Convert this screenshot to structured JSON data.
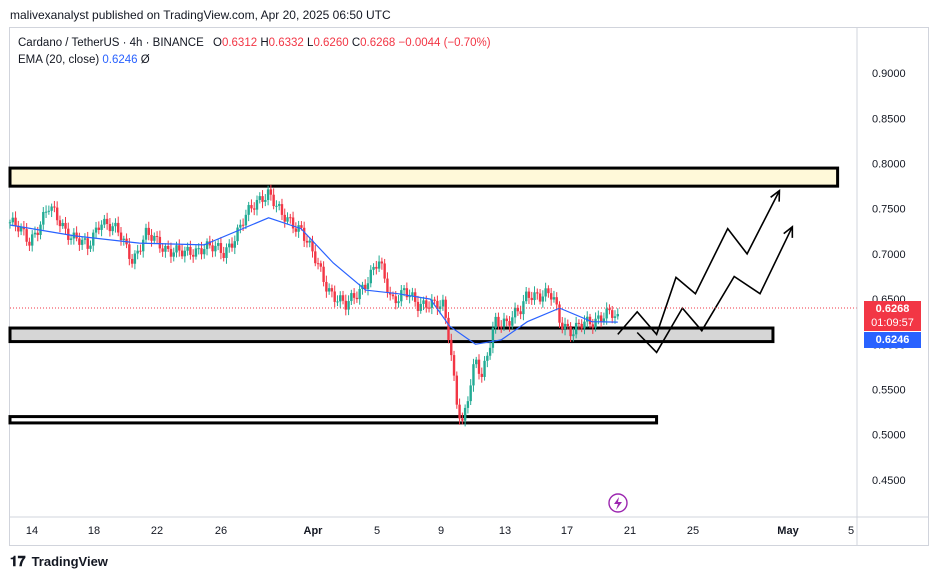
{
  "publisher_line": "malivexanalyst published on TradingView.com, Apr 20, 2025 06:50 UTC",
  "legend": {
    "symbol": "Cardano / TetherUS · 4h · BINANCE",
    "o_label": "O",
    "o_value": "0.6312",
    "h_label": "H",
    "h_value": "0.6332",
    "l_label": "L",
    "l_value": "0.6260",
    "c_label": "C",
    "c_value": "0.6268",
    "change": "−0.0044 (−0.70%)",
    "ema_label": "EMA (20, close)",
    "ema_value": "0.6246",
    "ema_suffix": "Ø"
  },
  "price_tags": {
    "last_price": "0.6268",
    "countdown": "01:09:57",
    "ema_price": "0.6246"
  },
  "footer_logo": "TradingView",
  "colors": {
    "up": "#22ab94",
    "down": "#f23645",
    "ema": "#2962ff",
    "resistance_zone": "#fff9d9",
    "support_zone": "#d6d6d6"
  },
  "chart_data": {
    "type": "candlestick",
    "symbol": "ADA/USDT",
    "interval": "4h",
    "ylim": [
      0.41,
      0.95
    ],
    "y_ticks": [
      "0.4500",
      "0.5000",
      "0.5500",
      "0.6000",
      "0.6500",
      "0.7000",
      "0.7500",
      "0.8000",
      "0.8500",
      "0.9000"
    ],
    "x_ticks": [
      "14",
      "18",
      "22",
      "26",
      "Apr",
      "5",
      "9",
      "13",
      "17",
      "21",
      "25",
      "May",
      "5"
    ],
    "price_path": [
      [
        0,
        0.735
      ],
      [
        3,
        0.715
      ],
      [
        6,
        0.75
      ],
      [
        9,
        0.725
      ],
      [
        12,
        0.705
      ],
      [
        14,
        0.74
      ],
      [
        17,
        0.72
      ],
      [
        19,
        0.695
      ],
      [
        21,
        0.72
      ],
      [
        24,
        0.708
      ],
      [
        27,
        0.698
      ],
      [
        30,
        0.71
      ],
      [
        33,
        0.7
      ],
      [
        36,
        0.735
      ],
      [
        39,
        0.765
      ],
      [
        40,
        0.77
      ],
      [
        42,
        0.74
      ],
      [
        45,
        0.73
      ],
      [
        47,
        0.695
      ],
      [
        49,
        0.665
      ],
      [
        52,
        0.64
      ],
      [
        55,
        0.67
      ],
      [
        57,
        0.69
      ],
      [
        59,
        0.65
      ],
      [
        61,
        0.66
      ],
      [
        63,
        0.64
      ],
      [
        65,
        0.65
      ],
      [
        67,
        0.64
      ],
      [
        68,
        0.6
      ],
      [
        69,
        0.54
      ],
      [
        70,
        0.515
      ],
      [
        71,
        0.55
      ],
      [
        72,
        0.58
      ],
      [
        73,
        0.56
      ],
      [
        75,
        0.63
      ],
      [
        77,
        0.62
      ],
      [
        79,
        0.64
      ],
      [
        80,
        0.66
      ],
      [
        82,
        0.65
      ],
      [
        84,
        0.655
      ],
      [
        85,
        0.63
      ],
      [
        87,
        0.61
      ],
      [
        89,
        0.625
      ],
      [
        91,
        0.63
      ],
      [
        93,
        0.632
      ],
      [
        94,
        0.6268
      ]
    ],
    "ema_20": [
      [
        0,
        0.732
      ],
      [
        10,
        0.72
      ],
      [
        20,
        0.712
      ],
      [
        30,
        0.71
      ],
      [
        40,
        0.74
      ],
      [
        45,
        0.728
      ],
      [
        50,
        0.69
      ],
      [
        55,
        0.66
      ],
      [
        60,
        0.656
      ],
      [
        65,
        0.65
      ],
      [
        68,
        0.62
      ],
      [
        72,
        0.6
      ],
      [
        76,
        0.605
      ],
      [
        80,
        0.625
      ],
      [
        85,
        0.64
      ],
      [
        90,
        0.625
      ],
      [
        94,
        0.6246
      ]
    ],
    "zones": [
      {
        "low": 0.775,
        "high": 0.795,
        "to_x": 128
      },
      {
        "low": 0.603,
        "high": 0.618,
        "to_x": 118
      },
      {
        "low": 0.513,
        "high": 0.52,
        "to_x": 100
      }
    ],
    "projection_paths": [
      [
        [
          94,
          0.611
        ],
        [
          97,
          0.636
        ],
        [
          100,
          0.611
        ],
        [
          103,
          0.674
        ],
        [
          106,
          0.656
        ],
        [
          111,
          0.728
        ],
        [
          114,
          0.7
        ],
        [
          119,
          0.77
        ]
      ],
      [
        [
          97,
          0.613
        ],
        [
          100,
          0.591
        ],
        [
          104,
          0.64
        ],
        [
          107,
          0.615
        ],
        [
          112,
          0.675
        ],
        [
          116,
          0.656
        ],
        [
          121,
          0.73
        ]
      ]
    ],
    "x_range": [
      0,
      131
    ]
  }
}
